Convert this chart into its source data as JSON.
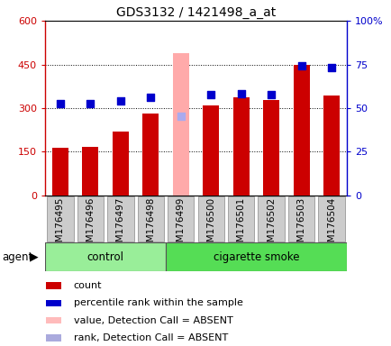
{
  "title": "GDS3132 / 1421498_a_at",
  "samples": [
    "GSM176495",
    "GSM176496",
    "GSM176497",
    "GSM176498",
    "GSM176499",
    "GSM176500",
    "GSM176501",
    "GSM176502",
    "GSM176503",
    "GSM176504"
  ],
  "bar_values": [
    165,
    168,
    220,
    280,
    490,
    308,
    337,
    328,
    448,
    343
  ],
  "bar_colors": [
    "#cc0000",
    "#cc0000",
    "#cc0000",
    "#cc0000",
    "#ffaaaa",
    "#cc0000",
    "#cc0000",
    "#cc0000",
    "#cc0000",
    "#cc0000"
  ],
  "dot_values": [
    315,
    315,
    325,
    338,
    273,
    345,
    350,
    345,
    445,
    440
  ],
  "dot_colors": [
    "#0000cc",
    "#0000cc",
    "#0000cc",
    "#0000cc",
    "#aaaaee",
    "#0000cc",
    "#0000cc",
    "#0000cc",
    "#0000cc",
    "#0000cc"
  ],
  "ylim_left": [
    0,
    600
  ],
  "ylim_right": [
    0,
    100
  ],
  "yticks_left": [
    0,
    150,
    300,
    450,
    600
  ],
  "yticks_left_labels": [
    "0",
    "150",
    "300",
    "450",
    "600"
  ],
  "yticks_right": [
    0,
    25,
    50,
    75,
    100
  ],
  "yticks_right_labels": [
    "0",
    "25",
    "50",
    "75",
    "100%"
  ],
  "n_control": 4,
  "n_smoke": 6,
  "control_color": "#99ee99",
  "smoke_color": "#55dd55",
  "agent_label": "agent",
  "control_label": "control",
  "smoke_label": "cigarette smoke",
  "legend_items": [
    {
      "label": "count",
      "color": "#cc0000"
    },
    {
      "label": "percentile rank within the sample",
      "color": "#0000cc"
    },
    {
      "label": "value, Detection Call = ABSENT",
      "color": "#ffbbbb"
    },
    {
      "label": "rank, Detection Call = ABSENT",
      "color": "#aaaadd"
    }
  ],
  "grid_linestyle": ":",
  "grid_color": "#000000",
  "bar_width": 0.55,
  "dot_size": 40,
  "tick_bg_color": "#cccccc",
  "tick_border_color": "#888888"
}
